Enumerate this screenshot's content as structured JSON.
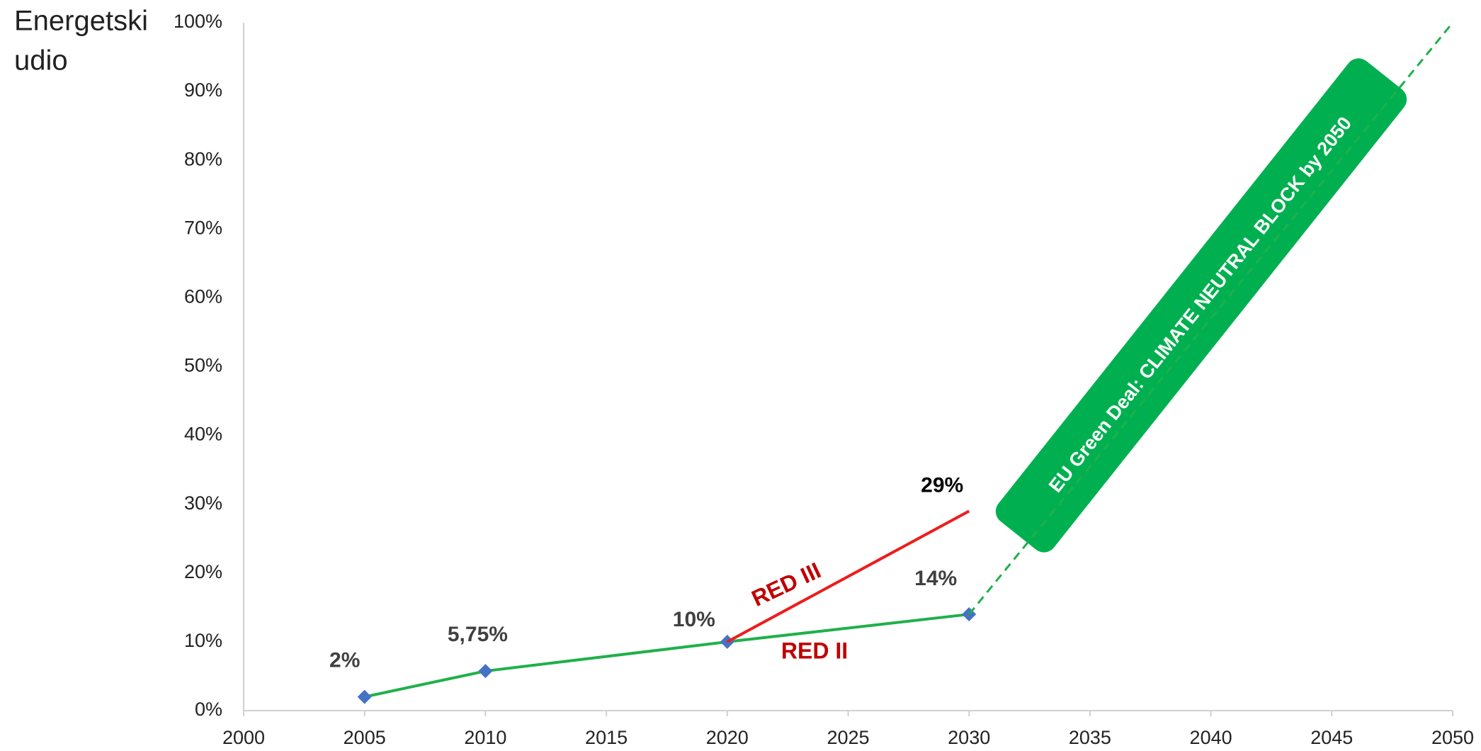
{
  "chart_data": {
    "type": "line",
    "y_label": [
      "Energetski",
      "udio"
    ],
    "xlim": [
      2000,
      2050
    ],
    "xticks": [
      2000,
      2005,
      2010,
      2015,
      2020,
      2025,
      2030,
      2035,
      2040,
      2045,
      2050
    ],
    "ylim": [
      0,
      100
    ],
    "yticks": [
      {
        "value": 0,
        "label": "0%"
      },
      {
        "value": 10,
        "label": "10%"
      },
      {
        "value": 20,
        "label": "20%"
      },
      {
        "value": 30,
        "label": "30%"
      },
      {
        "value": 40,
        "label": "40%"
      },
      {
        "value": 50,
        "label": "50%"
      },
      {
        "value": 60,
        "label": "60%"
      },
      {
        "value": 70,
        "label": "70%"
      },
      {
        "value": 80,
        "label": "80%"
      },
      {
        "value": 90,
        "label": "90%"
      },
      {
        "value": 100,
        "label": "100%"
      }
    ],
    "grid": false,
    "series": [
      {
        "name": "RED II",
        "color": "#1fb04b",
        "label_color": "#c00000",
        "marker": "diamond",
        "marker_color": "#4472c4",
        "x": [
          2005,
          2010,
          2020,
          2030
        ],
        "values": [
          2,
          5.75,
          10,
          14
        ],
        "value_labels": [
          "2%",
          "5,75%",
          "10%",
          "14%"
        ]
      },
      {
        "name": "RED III",
        "color": "#ee1c1c",
        "label_color": "#c00000",
        "x": [
          2020,
          2030
        ],
        "values": [
          10,
          29
        ],
        "value_labels": [
          null,
          "29%"
        ]
      },
      {
        "color": "#1fb04b",
        "dashed": true,
        "x": [
          2030,
          2050
        ],
        "values": [
          14,
          100
        ]
      }
    ],
    "annotation": {
      "text": "EU Green Deal: CLIMATE NEUTRAL BLOCK by 2050",
      "color": "#00b050"
    }
  }
}
